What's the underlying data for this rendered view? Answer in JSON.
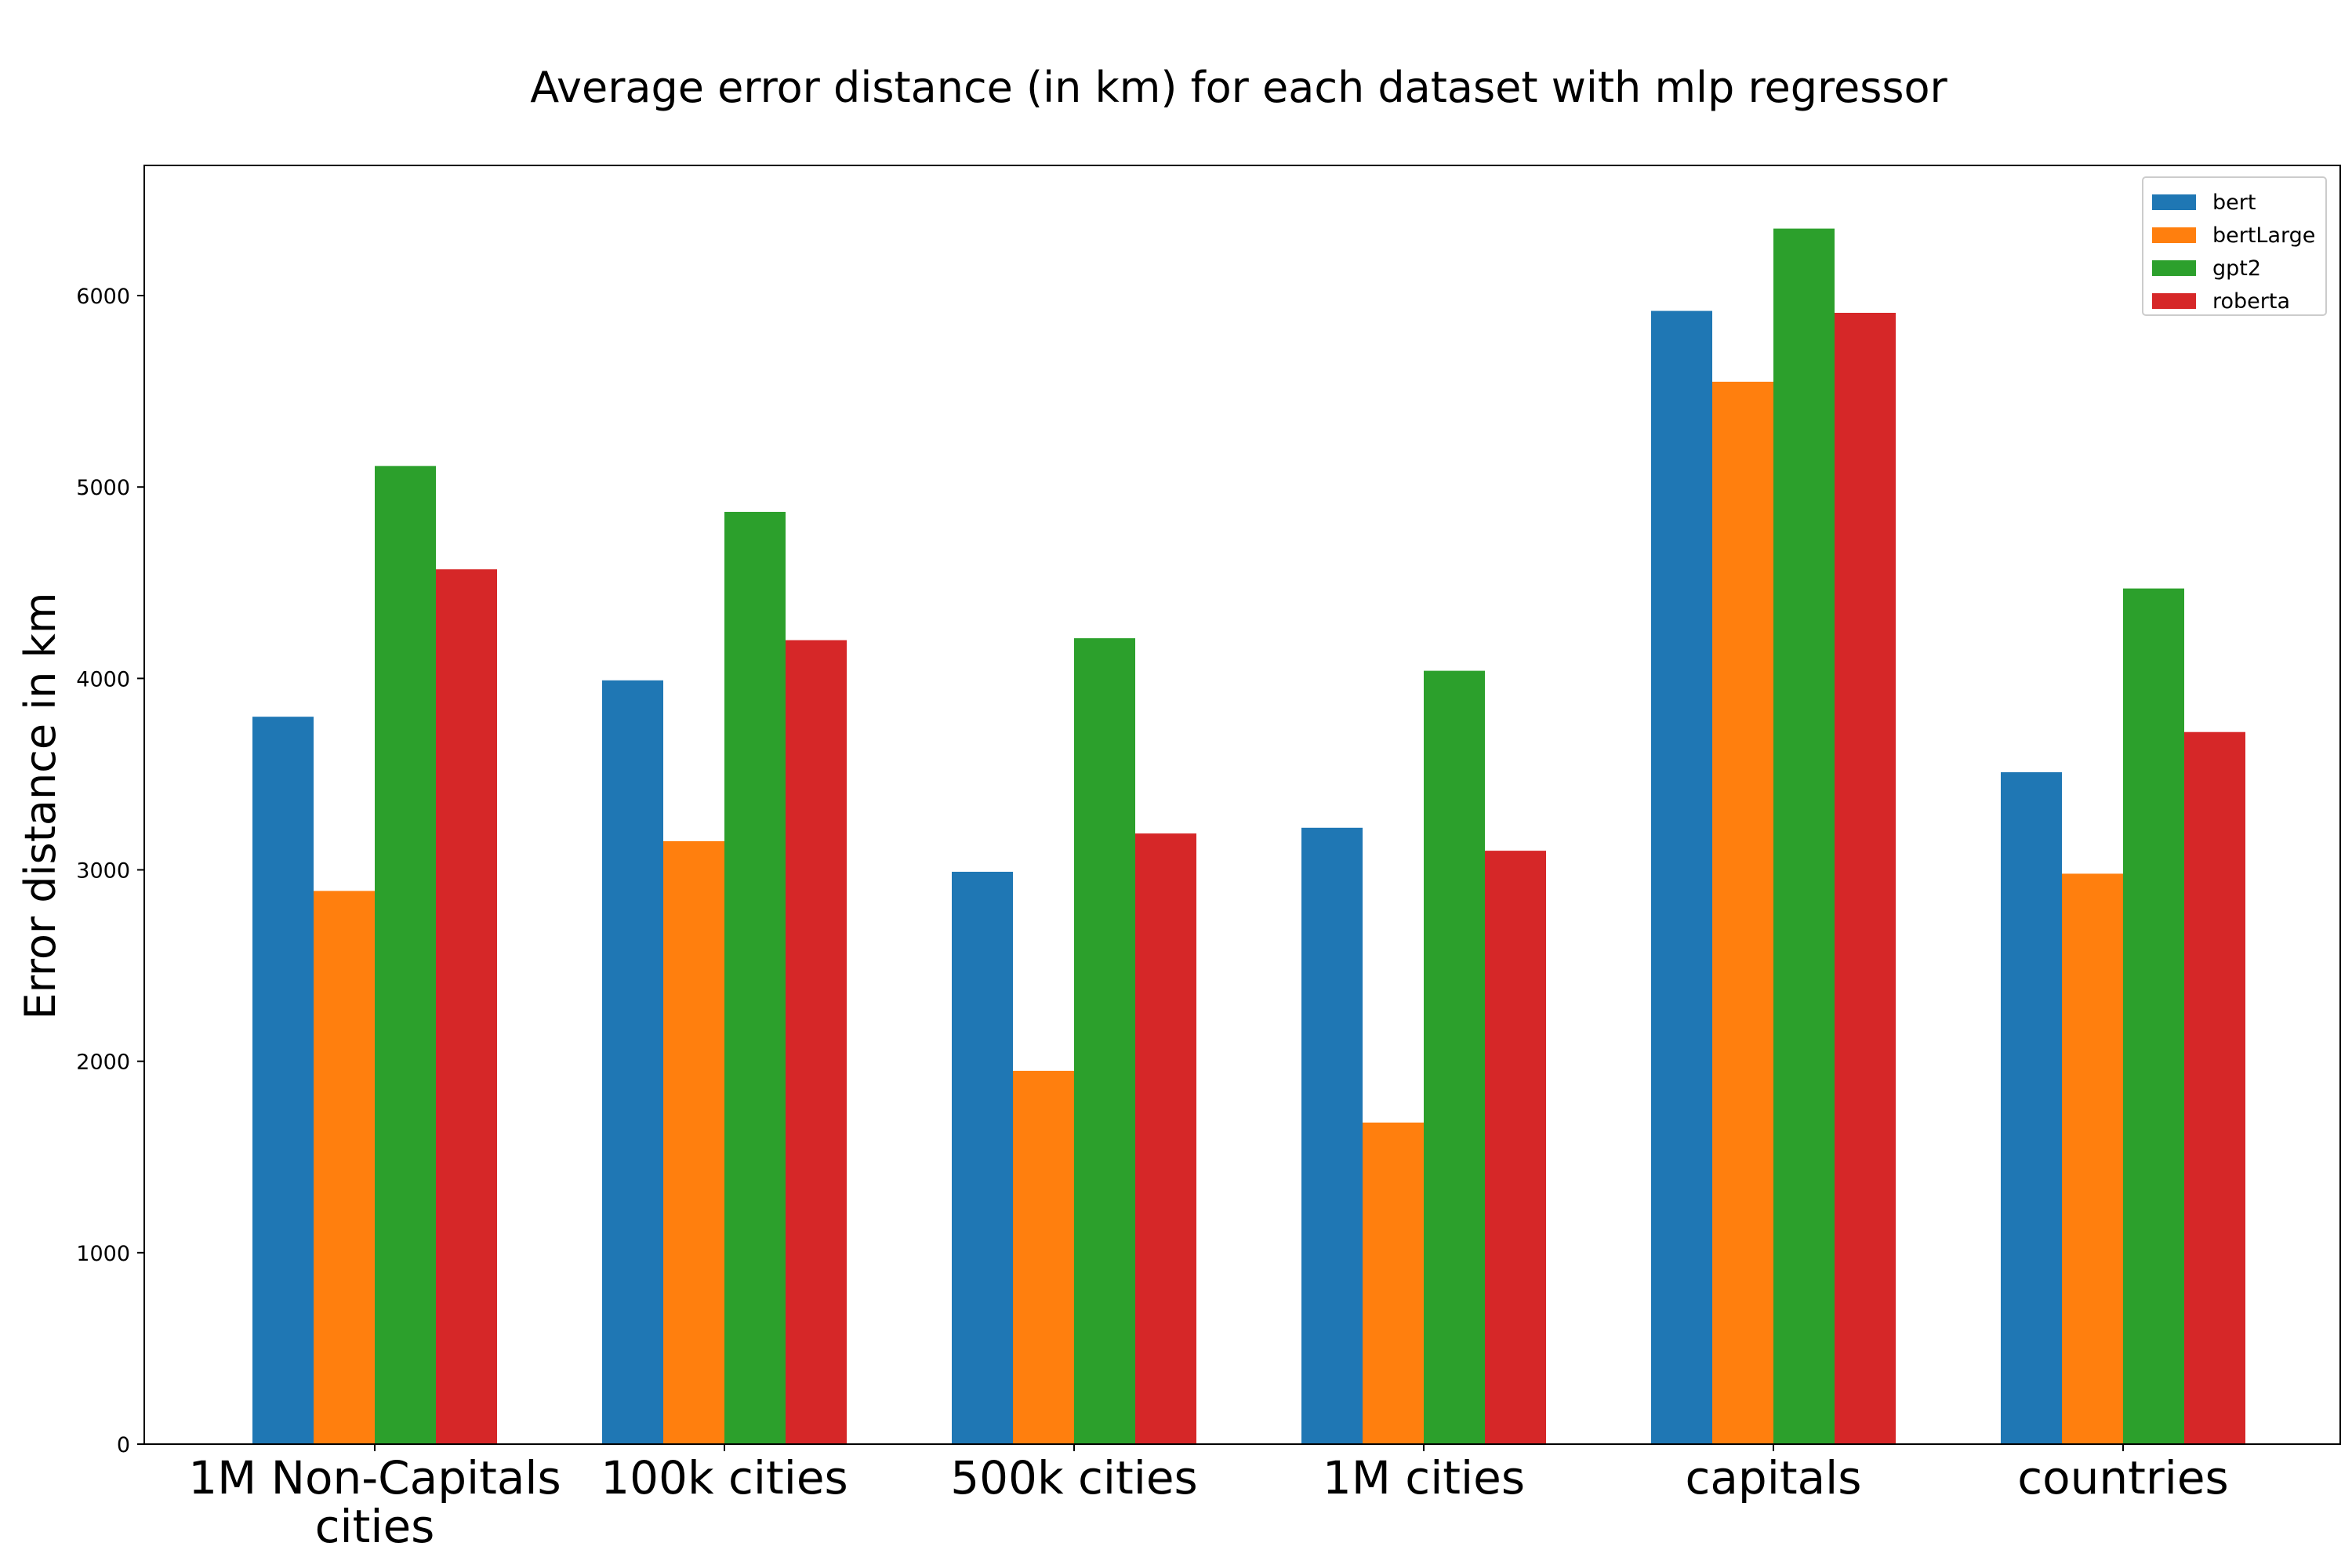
{
  "chart_data": {
    "type": "bar",
    "title": "Average error distance (in km) for each dataset with mlp regressor",
    "xlabel": "",
    "ylabel": "Error distance in km",
    "ylim": [
      0,
      6680
    ],
    "yticks": [
      0,
      1000,
      2000,
      3000,
      4000,
      5000,
      6000
    ],
    "categories": [
      "1M Non-Capitals cities",
      "100k cities",
      "500k cities",
      "1M cities",
      "capitals",
      "countries"
    ],
    "series": [
      {
        "name": "bert",
        "color": "#1f77b4",
        "values": [
          3800,
          3990,
          2990,
          3220,
          5920,
          3510
        ]
      },
      {
        "name": "bertLarge",
        "color": "#ff7f0e",
        "values": [
          2890,
          3150,
          1950,
          1680,
          5550,
          2980
        ]
      },
      {
        "name": "gpt2",
        "color": "#2ca02c",
        "values": [
          5110,
          4870,
          4210,
          4040,
          6350,
          4470
        ]
      },
      {
        "name": "roberta",
        "color": "#d62728",
        "values": [
          4570,
          4200,
          3190,
          3100,
          5910,
          3720
        ]
      }
    ],
    "legend": "top-right",
    "grid": false
  }
}
